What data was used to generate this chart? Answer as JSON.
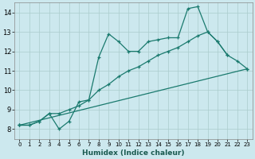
{
  "xlabel": "Humidex (Indice chaleur)",
  "bg_color": "#cce8ee",
  "grid_color": "#aacccc",
  "line_color": "#1a7a6e",
  "xlim": [
    -0.5,
    23.5
  ],
  "ylim": [
    7.5,
    14.5
  ],
  "xticks": [
    0,
    1,
    2,
    3,
    4,
    5,
    6,
    7,
    8,
    9,
    10,
    11,
    12,
    13,
    14,
    15,
    16,
    17,
    18,
    19,
    20,
    21,
    22,
    23
  ],
  "yticks": [
    8,
    9,
    10,
    11,
    12,
    13,
    14
  ],
  "line1_x": [
    0,
    1,
    2,
    3,
    4,
    5,
    6,
    7,
    8,
    9,
    10,
    11,
    12,
    13,
    14,
    15,
    16,
    17,
    18,
    19,
    20,
    21
  ],
  "line1_y": [
    8.2,
    8.2,
    8.4,
    8.8,
    8.0,
    8.4,
    9.4,
    9.5,
    11.7,
    12.9,
    12.5,
    12.0,
    12.0,
    12.5,
    12.6,
    12.7,
    12.7,
    14.2,
    14.3,
    13.0,
    12.5,
    11.8
  ],
  "line2_x": [
    0,
    1,
    2,
    3,
    4,
    5,
    6,
    7,
    8,
    9,
    10,
    11,
    12,
    13,
    14,
    15,
    16,
    17,
    18,
    19,
    20,
    21,
    22,
    23
  ],
  "line2_y": [
    8.2,
    8.2,
    8.4,
    8.8,
    8.8,
    9.0,
    9.2,
    9.5,
    10.0,
    10.3,
    10.7,
    11.0,
    11.2,
    11.5,
    11.8,
    12.0,
    12.2,
    12.5,
    12.8,
    13.0,
    12.5,
    11.8,
    11.5,
    11.1
  ],
  "line3_x": [
    0,
    23
  ],
  "line3_y": [
    8.2,
    11.1
  ]
}
